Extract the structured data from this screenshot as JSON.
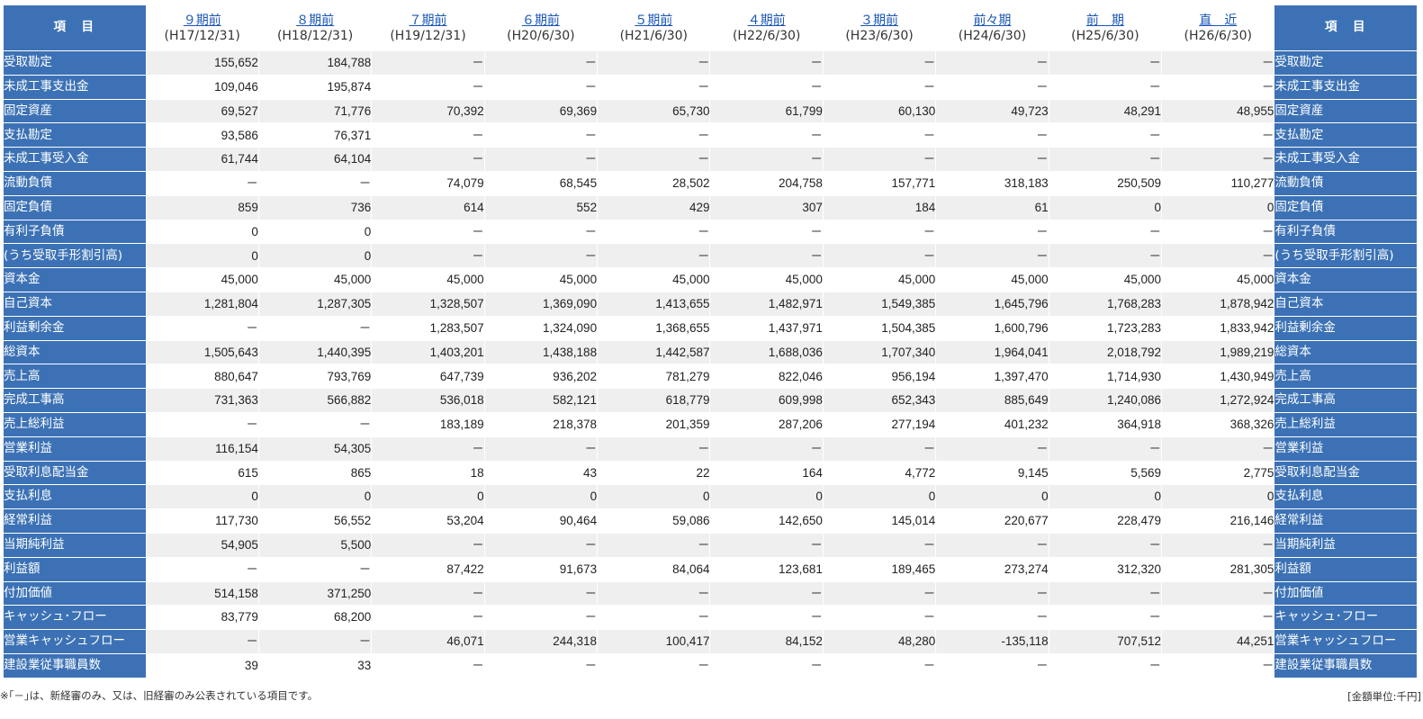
{
  "header": {
    "label": "項　目",
    "periods": [
      {
        "name": "９期前",
        "date": "(H17/12/31)"
      },
      {
        "name": "８期前",
        "date": "(H18/12/31)"
      },
      {
        "name": "７期前",
        "date": "(H19/12/31)"
      },
      {
        "name": "６期前",
        "date": "(H20/6/30)"
      },
      {
        "name": "５期前",
        "date": "(H21/6/30)"
      },
      {
        "name": "４期前",
        "date": "(H22/6/30)"
      },
      {
        "name": "３期前",
        "date": "(H23/6/30)"
      },
      {
        "name": "前々期",
        "date": "(H24/6/30)"
      },
      {
        "name": "前　期",
        "date": "(H25/6/30)"
      },
      {
        "name": "直　近",
        "date": "(H26/6/30)"
      }
    ]
  },
  "rows": [
    {
      "label": "受取勘定",
      "values": [
        "155,652",
        "184,788",
        "－",
        "－",
        "－",
        "－",
        "－",
        "－",
        "－",
        "－"
      ]
    },
    {
      "label": "未成工事支出金",
      "values": [
        "109,046",
        "195,874",
        "－",
        "－",
        "－",
        "－",
        "－",
        "－",
        "－",
        "－"
      ]
    },
    {
      "label": "固定資産",
      "values": [
        "69,527",
        "71,776",
        "70,392",
        "69,369",
        "65,730",
        "61,799",
        "60,130",
        "49,723",
        "48,291",
        "48,955"
      ]
    },
    {
      "label": "支払勘定",
      "values": [
        "93,586",
        "76,371",
        "－",
        "－",
        "－",
        "－",
        "－",
        "－",
        "－",
        "－"
      ]
    },
    {
      "label": "未成工事受入金",
      "values": [
        "61,744",
        "64,104",
        "－",
        "－",
        "－",
        "－",
        "－",
        "－",
        "－",
        "－"
      ]
    },
    {
      "label": "流動負債",
      "values": [
        "－",
        "－",
        "74,079",
        "68,545",
        "28,502",
        "204,758",
        "157,771",
        "318,183",
        "250,509",
        "110,277"
      ]
    },
    {
      "label": "固定負債",
      "values": [
        "859",
        "736",
        "614",
        "552",
        "429",
        "307",
        "184",
        "61",
        "0",
        "0"
      ]
    },
    {
      "label": "有利子負債",
      "values": [
        "0",
        "0",
        "－",
        "－",
        "－",
        "－",
        "－",
        "－",
        "－",
        "－"
      ]
    },
    {
      "label": "(うち受取手形割引高)",
      "values": [
        "0",
        "0",
        "－",
        "－",
        "－",
        "－",
        "－",
        "－",
        "－",
        "－"
      ]
    },
    {
      "label": "資本金",
      "values": [
        "45,000",
        "45,000",
        "45,000",
        "45,000",
        "45,000",
        "45,000",
        "45,000",
        "45,000",
        "45,000",
        "45,000"
      ]
    },
    {
      "label": "自己資本",
      "values": [
        "1,281,804",
        "1,287,305",
        "1,328,507",
        "1,369,090",
        "1,413,655",
        "1,482,971",
        "1,549,385",
        "1,645,796",
        "1,768,283",
        "1,878,942"
      ]
    },
    {
      "label": "利益剰余金",
      "values": [
        "－",
        "－",
        "1,283,507",
        "1,324,090",
        "1,368,655",
        "1,437,971",
        "1,504,385",
        "1,600,796",
        "1,723,283",
        "1,833,942"
      ]
    },
    {
      "label": "総資本",
      "values": [
        "1,505,643",
        "1,440,395",
        "1,403,201",
        "1,438,188",
        "1,442,587",
        "1,688,036",
        "1,707,340",
        "1,964,041",
        "2,018,792",
        "1,989,219"
      ]
    },
    {
      "label": "売上高",
      "values": [
        "880,647",
        "793,769",
        "647,739",
        "936,202",
        "781,279",
        "822,046",
        "956,194",
        "1,397,470",
        "1,714,930",
        "1,430,949"
      ]
    },
    {
      "label": "完成工事高",
      "values": [
        "731,363",
        "566,882",
        "536,018",
        "582,121",
        "618,779",
        "609,998",
        "652,343",
        "885,649",
        "1,240,086",
        "1,272,924"
      ]
    },
    {
      "label": "売上総利益",
      "values": [
        "－",
        "－",
        "183,189",
        "218,378",
        "201,359",
        "287,206",
        "277,194",
        "401,232",
        "364,918",
        "368,326"
      ]
    },
    {
      "label": "営業利益",
      "values": [
        "116,154",
        "54,305",
        "－",
        "－",
        "－",
        "－",
        "－",
        "－",
        "－",
        "－"
      ]
    },
    {
      "label": "受取利息配当金",
      "values": [
        "615",
        "865",
        "18",
        "43",
        "22",
        "164",
        "4,772",
        "9,145",
        "5,569",
        "2,775"
      ]
    },
    {
      "label": "支払利息",
      "values": [
        "0",
        "0",
        "0",
        "0",
        "0",
        "0",
        "0",
        "0",
        "0",
        "0"
      ]
    },
    {
      "label": "経常利益",
      "values": [
        "117,730",
        "56,552",
        "53,204",
        "90,464",
        "59,086",
        "142,650",
        "145,014",
        "220,677",
        "228,479",
        "216,146"
      ]
    },
    {
      "label": "当期純利益",
      "values": [
        "54,905",
        "5,500",
        "－",
        "－",
        "－",
        "－",
        "－",
        "－",
        "－",
        "－"
      ]
    },
    {
      "label": "利益額",
      "values": [
        "－",
        "－",
        "87,422",
        "91,673",
        "84,064",
        "123,681",
        "189,465",
        "273,274",
        "312,320",
        "281,305"
      ]
    },
    {
      "label": "付加価値",
      "values": [
        "514,158",
        "371,250",
        "－",
        "－",
        "－",
        "－",
        "－",
        "－",
        "－",
        "－"
      ]
    },
    {
      "label": "キャッシュ･フロー",
      "values": [
        "83,779",
        "68,200",
        "－",
        "－",
        "－",
        "－",
        "－",
        "－",
        "－",
        "－"
      ]
    },
    {
      "label": "営業キャッシュフロー",
      "values": [
        "－",
        "－",
        "46,071",
        "244,318",
        "100,417",
        "84,152",
        "48,280",
        "-135,118",
        "707,512",
        "44,251"
      ]
    },
    {
      "label": "建設業従事職員数",
      "values": [
        "39",
        "33",
        "－",
        "－",
        "－",
        "－",
        "－",
        "－",
        "－",
        "－"
      ]
    }
  ],
  "footnote": "※｢－｣は、新経審のみ、又は、旧経審のみ公表されている項目です。",
  "unit_note": "[金額単位:千円]"
}
